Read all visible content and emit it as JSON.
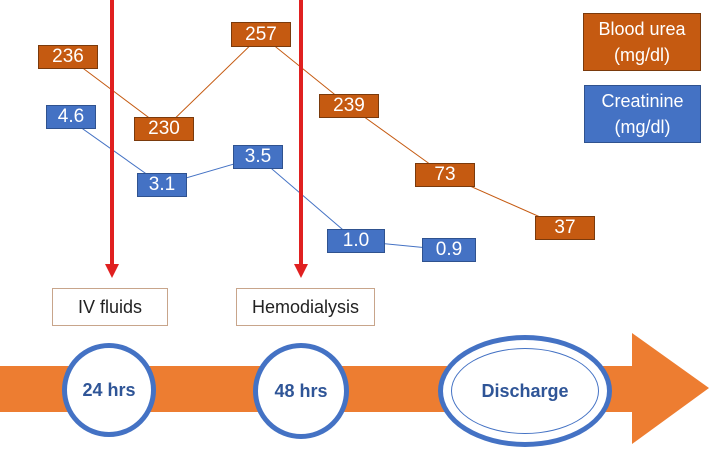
{
  "colors": {
    "urea": "#c55a11",
    "creatinine": "#4472c4",
    "arrow": "#ed7d31",
    "marker": "#e02020"
  },
  "legend": {
    "urea": [
      "Blood urea",
      "(mg/dl)"
    ],
    "creatinine": [
      "Creatinine",
      "(mg/dl)"
    ]
  },
  "chart_data": {
    "type": "line",
    "series": [
      {
        "name": "Blood urea (mg/dl)",
        "values": [
          236,
          230,
          257,
          239,
          73,
          37
        ],
        "labels": [
          "236",
          "230",
          "257",
          "239",
          "73",
          "37"
        ]
      },
      {
        "name": "Creatinine (mg/dl)",
        "values": [
          4.6,
          3.1,
          3.5,
          1.0,
          0.9
        ],
        "labels": [
          "4.6",
          "3.1",
          "3.5",
          "1.0",
          "0.9"
        ]
      }
    ]
  },
  "events": {
    "iv_fluids": "IV fluids",
    "hemodialysis": "Hemodialysis"
  },
  "timeline": {
    "t24": "24 hrs",
    "t48": "48 hrs",
    "discharge": "Discharge"
  }
}
